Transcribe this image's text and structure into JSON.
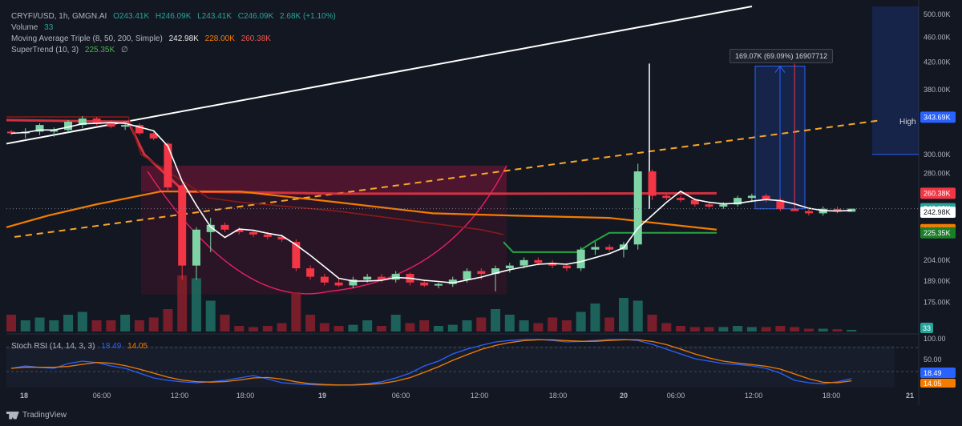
{
  "legend": {
    "symbol": "CRYFI/USD, 1h, GMGN.AI",
    "open": "O243.41K",
    "high": "H246.09K",
    "low": "L243.41K",
    "close": "C246.09K",
    "change": "2.68K (+1.10%)",
    "volume_label": "Volume",
    "volume_value": "33",
    "ma_label": "Moving Average Triple (8, 50, 200, Simple)",
    "ma8": "242.98K",
    "ma50": "228.00K",
    "ma200": "260.38K",
    "st_label": "SuperTrend (10, 3)",
    "st_value": "225.35K",
    "st_extra": "∅"
  },
  "stoch": {
    "label": "Stoch RSI (14, 14, 3, 3)",
    "k": "18.49",
    "d": "14.05"
  },
  "measure_label": "169.07K (69.09%) 16907712",
  "high_label": "High",
  "brand": "TradingView",
  "colors": {
    "up": "#26a69a",
    "upbody": "#7fd4a6",
    "down": "#f23645",
    "ma8": "#ffffff",
    "ma50": "#f57c00",
    "ma200": "#f23645",
    "supertrend": "#26a641",
    "measure": "#2962ff",
    "trend": "#f9a825"
  },
  "chart_data": {
    "type": "candlestick",
    "price_axis": {
      "ticks": [
        "500.00K",
        "460.00K",
        "420.00K",
        "380.00K",
        "343.69K",
        "300.00K",
        "280.00K",
        "260.38K",
        "246.09K",
        "242.98K",
        "228.00K",
        "225.35K",
        "204.00K",
        "189.00K",
        "175.00K",
        "33"
      ],
      "scale": "log"
    },
    "time_axis": {
      "ticks": [
        "18",
        "06:00",
        "12:00",
        "18:00",
        "19",
        "06:00",
        "12:00",
        "18:00",
        "20",
        "06:00",
        "12:00",
        "18:00",
        "21"
      ]
    },
    "stoch_axis": {
      "ticks": [
        "100.00",
        "50.00",
        "18.49",
        "14.05"
      ]
    },
    "price_labels": [
      {
        "text": "343.69K",
        "color": "#2962ff",
        "value": 343.69
      },
      {
        "text": "260.38K",
        "color": "#f23645",
        "value": 260.38
      },
      {
        "text": "246.09K",
        "color": "#26a69a",
        "value": 246.09
      },
      {
        "text": "242.98K",
        "color": "#ffffff",
        "value": 242.98
      },
      {
        "text": "228.00K",
        "color": "#f57c00",
        "value": 228.0
      },
      {
        "text": "225.35K",
        "color": "#1b7f2a",
        "value": 225.35
      }
    ],
    "candles": [
      {
        "t": 0,
        "o": 326,
        "h": 328,
        "l": 322,
        "c": 324
      },
      {
        "t": 1,
        "o": 324,
        "h": 330,
        "l": 318,
        "c": 326
      },
      {
        "t": 2,
        "o": 326,
        "h": 336,
        "l": 322,
        "c": 334
      },
      {
        "t": 3,
        "o": 326,
        "h": 331,
        "l": 320,
        "c": 328
      },
      {
        "t": 4,
        "o": 328,
        "h": 340,
        "l": 325,
        "c": 338
      },
      {
        "t": 5,
        "o": 334,
        "h": 345,
        "l": 330,
        "c": 342
      },
      {
        "t": 6,
        "o": 342,
        "h": 344,
        "l": 334,
        "c": 336
      },
      {
        "t": 7,
        "o": 336,
        "h": 340,
        "l": 330,
        "c": 332
      },
      {
        "t": 8,
        "o": 332,
        "h": 336,
        "l": 328,
        "c": 334
      },
      {
        "t": 9,
        "o": 334,
        "h": 336,
        "l": 322,
        "c": 324
      },
      {
        "t": 10,
        "o": 324,
        "h": 326,
        "l": 316,
        "c": 318
      },
      {
        "t": 11,
        "o": 312,
        "h": 314,
        "l": 262,
        "c": 266
      },
      {
        "t": 12,
        "o": 268,
        "h": 270,
        "l": 190,
        "c": 200
      },
      {
        "t": 13,
        "o": 200,
        "h": 230,
        "l": 190,
        "c": 228
      },
      {
        "t": 14,
        "o": 226,
        "h": 238,
        "l": 210,
        "c": 232
      },
      {
        "t": 15,
        "o": 232,
        "h": 234,
        "l": 226,
        "c": 228
      },
      {
        "t": 16,
        "o": 228,
        "h": 230,
        "l": 224,
        "c": 226
      },
      {
        "t": 17,
        "o": 226,
        "h": 228,
        "l": 222,
        "c": 224
      },
      {
        "t": 18,
        "o": 224,
        "h": 226,
        "l": 220,
        "c": 222
      },
      {
        "t": 19,
        "o": 222,
        "h": 224,
        "l": 218,
        "c": 220
      },
      {
        "t": 20,
        "o": 218,
        "h": 220,
        "l": 196,
        "c": 198
      },
      {
        "t": 21,
        "o": 198,
        "h": 200,
        "l": 190,
        "c": 192
      },
      {
        "t": 22,
        "o": 192,
        "h": 194,
        "l": 186,
        "c": 188
      },
      {
        "t": 23,
        "o": 188,
        "h": 191,
        "l": 185,
        "c": 186
      },
      {
        "t": 24,
        "o": 186,
        "h": 192,
        "l": 184,
        "c": 190
      },
      {
        "t": 25,
        "o": 190,
        "h": 194,
        "l": 188,
        "c": 192
      },
      {
        "t": 26,
        "o": 192,
        "h": 194,
        "l": 188,
        "c": 190
      },
      {
        "t": 27,
        "o": 190,
        "h": 196,
        "l": 188,
        "c": 194
      },
      {
        "t": 28,
        "o": 194,
        "h": 195,
        "l": 186,
        "c": 188
      },
      {
        "t": 29,
        "o": 188,
        "h": 190,
        "l": 185,
        "c": 186
      },
      {
        "t": 30,
        "o": 186,
        "h": 188,
        "l": 184,
        "c": 187
      },
      {
        "t": 31,
        "o": 187,
        "h": 192,
        "l": 185,
        "c": 190
      },
      {
        "t": 32,
        "o": 190,
        "h": 198,
        "l": 188,
        "c": 196
      },
      {
        "t": 33,
        "o": 196,
        "h": 198,
        "l": 190,
        "c": 194
      },
      {
        "t": 34,
        "o": 194,
        "h": 200,
        "l": 182,
        "c": 198
      },
      {
        "t": 35,
        "o": 198,
        "h": 202,
        "l": 195,
        "c": 200
      },
      {
        "t": 36,
        "o": 200,
        "h": 206,
        "l": 198,
        "c": 204
      },
      {
        "t": 37,
        "o": 204,
        "h": 206,
        "l": 200,
        "c": 202
      },
      {
        "t": 38,
        "o": 202,
        "h": 204,
        "l": 198,
        "c": 200
      },
      {
        "t": 39,
        "o": 200,
        "h": 202,
        "l": 196,
        "c": 198
      },
      {
        "t": 40,
        "o": 198,
        "h": 214,
        "l": 196,
        "c": 212
      },
      {
        "t": 41,
        "o": 212,
        "h": 218,
        "l": 208,
        "c": 214
      },
      {
        "t": 42,
        "o": 214,
        "h": 216,
        "l": 210,
        "c": 212
      },
      {
        "t": 43,
        "o": 212,
        "h": 218,
        "l": 206,
        "c": 216
      },
      {
        "t": 44,
        "o": 216,
        "h": 290,
        "l": 212,
        "c": 282
      },
      {
        "t": 45,
        "o": 282,
        "h": 284,
        "l": 254,
        "c": 258
      },
      {
        "t": 46,
        "o": 258,
        "h": 260,
        "l": 254,
        "c": 256
      },
      {
        "t": 47,
        "o": 256,
        "h": 258,
        "l": 252,
        "c": 254
      },
      {
        "t": 48,
        "o": 254,
        "h": 256,
        "l": 248,
        "c": 250
      },
      {
        "t": 49,
        "o": 250,
        "h": 252,
        "l": 246,
        "c": 248
      },
      {
        "t": 50,
        "o": 248,
        "h": 252,
        "l": 246,
        "c": 250
      },
      {
        "t": 51,
        "o": 250,
        "h": 258,
        "l": 248,
        "c": 256
      },
      {
        "t": 52,
        "o": 256,
        "h": 260,
        "l": 252,
        "c": 258
      },
      {
        "t": 53,
        "o": 258,
        "h": 260,
        "l": 252,
        "c": 254
      },
      {
        "t": 54,
        "o": 254,
        "h": 256,
        "l": 244,
        "c": 246
      },
      {
        "t": 55,
        "o": 246,
        "h": 418,
        "l": 244,
        "c": 244
      },
      {
        "t": 56,
        "o": 244,
        "h": 246,
        "l": 240,
        "c": 242
      },
      {
        "t": 57,
        "o": 242,
        "h": 248,
        "l": 240,
        "c": 246
      },
      {
        "t": 58,
        "o": 246,
        "h": 248,
        "l": 242,
        "c": 244
      },
      {
        "t": 59,
        "o": 243.41,
        "h": 246.09,
        "l": 243.41,
        "c": 246.09
      }
    ]
  }
}
